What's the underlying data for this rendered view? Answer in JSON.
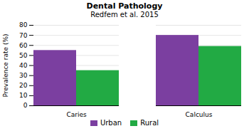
{
  "chart_data": {
    "type": "bar",
    "title": "Dental Pathology",
    "subtitle": "Redfem et al. 2015",
    "categories": [
      "Caries",
      "Calculus"
    ],
    "series": [
      {
        "name": "Urban",
        "color": "#7B3FA0",
        "values": [
          55,
          70
        ]
      },
      {
        "name": "Rural",
        "color": "#22AA44",
        "values": [
          35,
          59
        ]
      }
    ],
    "ylabel": "Prevalence rate (%)",
    "ylim": [
      0,
      80
    ],
    "yticks": [
      0,
      10,
      20,
      30,
      40,
      50,
      60,
      70,
      80
    ],
    "grid": true,
    "legend": "bottom"
  }
}
